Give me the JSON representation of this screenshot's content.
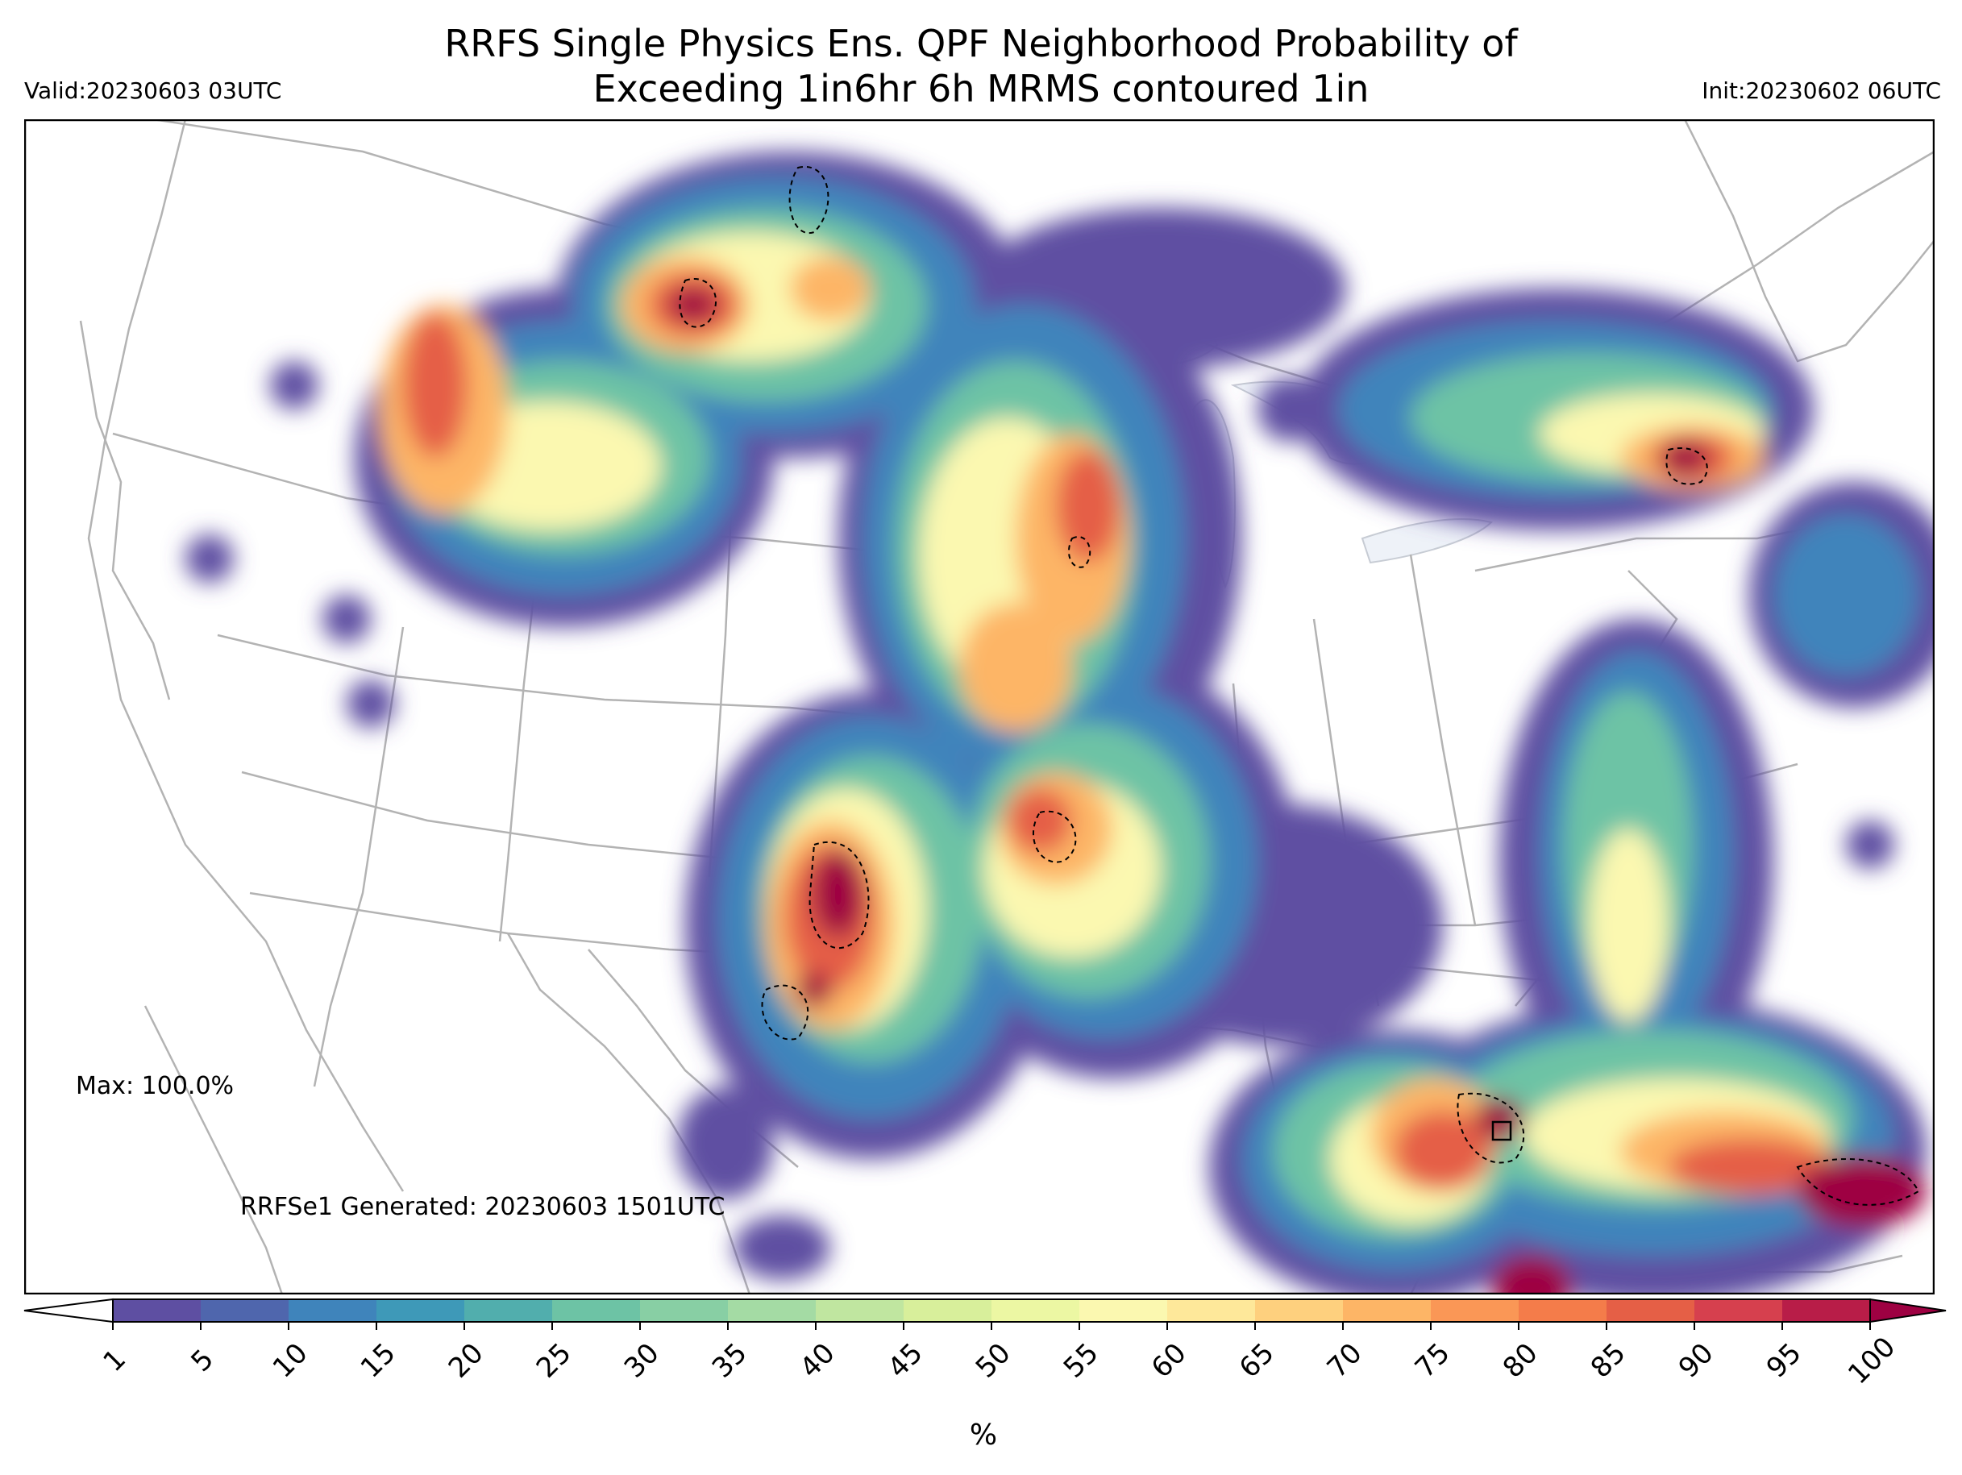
{
  "title": {
    "line1": "RRFS Single Physics Ens. QPF Neighborhood Probability of",
    "line2": "Exceeding 1in6hr 6h MRMS contoured 1in"
  },
  "valid": "Valid:20230603 03UTC",
  "init": "Init:20230602 06UTC",
  "max_label": "Max: 100.0%",
  "generated": "RRFSe1 Generated: 20230603 1501UTC",
  "colorbar": {
    "unit": "%",
    "ticks": [
      "1",
      "5",
      "10",
      "15",
      "20",
      "25",
      "30",
      "35",
      "40",
      "45",
      "50",
      "55",
      "60",
      "65",
      "70",
      "75",
      "80",
      "85",
      "90",
      "95",
      "100"
    ],
    "colors": [
      "#5e4fa2",
      "#4f66ad",
      "#3f84bb",
      "#3e99b8",
      "#51aead",
      "#6dc3a5",
      "#88cfa4",
      "#a4dba4",
      "#c0e6a0",
      "#d8ef9b",
      "#ecf7a3",
      "#fbf8b0",
      "#fee89a",
      "#fed07e",
      "#fdb566",
      "#fa9756",
      "#f47c4a",
      "#e55f46",
      "#d6404e",
      "#b81d48"
    ],
    "under_color": "#ffffff",
    "over_color": "#9e0142"
  },
  "map": {
    "region": "CONUS",
    "palette_scale": [
      "#5e4fa2",
      "#3f84bb",
      "#6dc3a5",
      "#c0e6a0",
      "#fbf8b0",
      "#fdb566",
      "#e55f46",
      "#9e0142"
    ],
    "lake_color": "#eef2f8",
    "border_color": "#b3b3b3"
  }
}
